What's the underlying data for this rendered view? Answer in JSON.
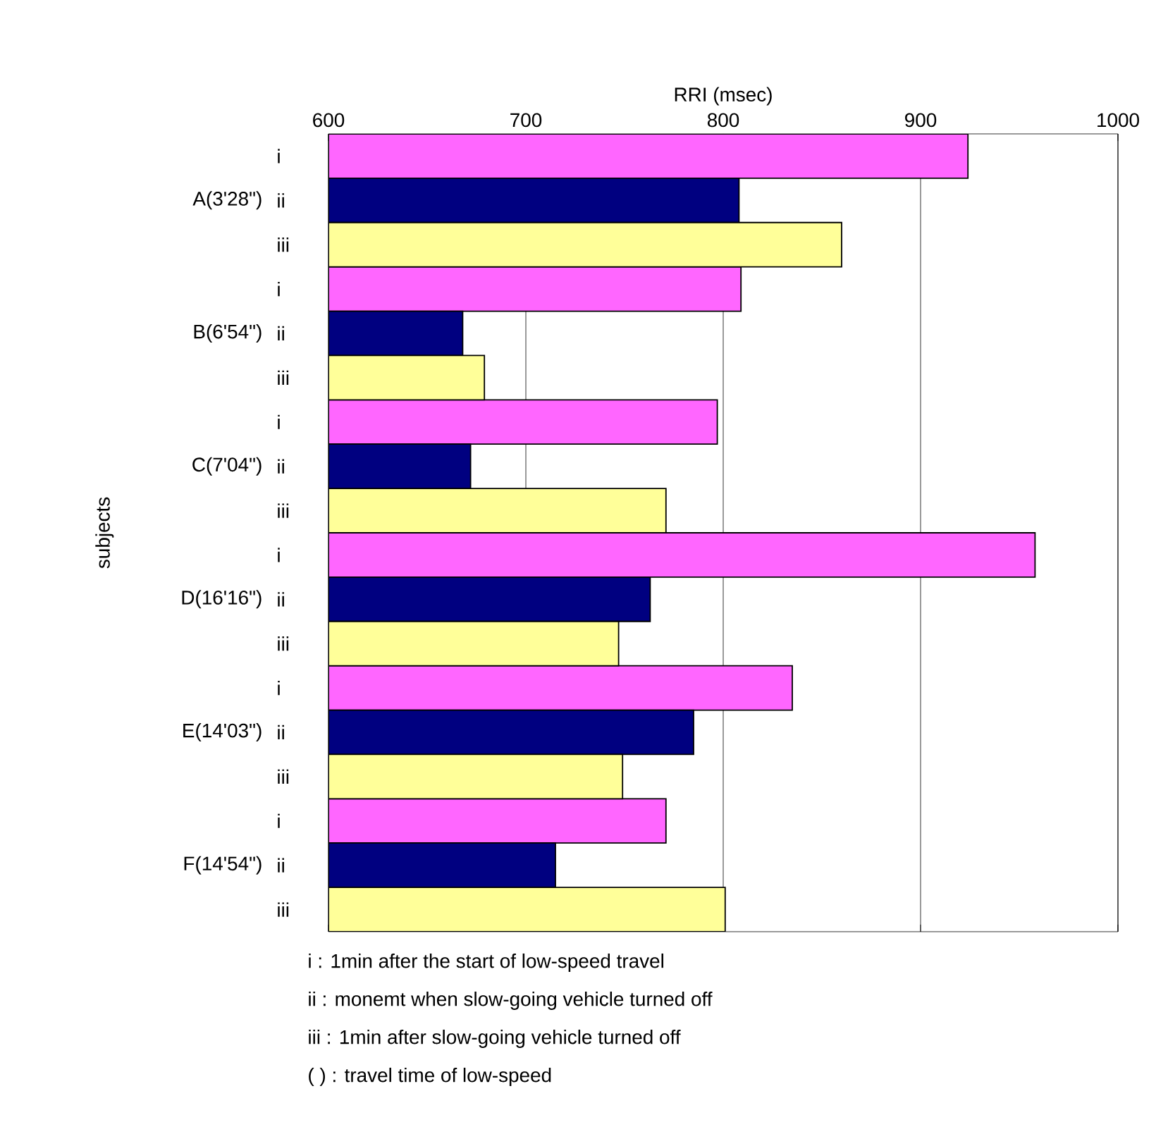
{
  "chart_data": {
    "type": "bar",
    "orientation": "horizontal",
    "xlabel": "RRI (msec)",
    "ylabel": "subjects",
    "categories": [
      "A(3'28\")",
      "B(6'54\")",
      "C(7'04\")",
      "D(16'16\")",
      "E(14'03\")",
      "F(14'54\")"
    ],
    "series": [
      {
        "name": "i",
        "color": "#ff66ff",
        "values": [
          924,
          809,
          797,
          958,
          835,
          771
        ]
      },
      {
        "name": "ii",
        "color": "#000080",
        "values": [
          808,
          668,
          672,
          763,
          785,
          715
        ]
      },
      {
        "name": "iii",
        "color": "#ffff99",
        "values": [
          860,
          679,
          771,
          747,
          749,
          801
        ]
      }
    ],
    "xlim": [
      600,
      1000
    ],
    "xticks": [
      600,
      700,
      800,
      900,
      1000
    ],
    "grid": "x",
    "annotations": [
      "i   : 1min after the start of low-speed travel",
      "ii  : monemt when slow-going vehicle turned off",
      "iii  : 1min after slow-going vehicle turned off",
      "( ) : travel time of low-speed"
    ]
  }
}
